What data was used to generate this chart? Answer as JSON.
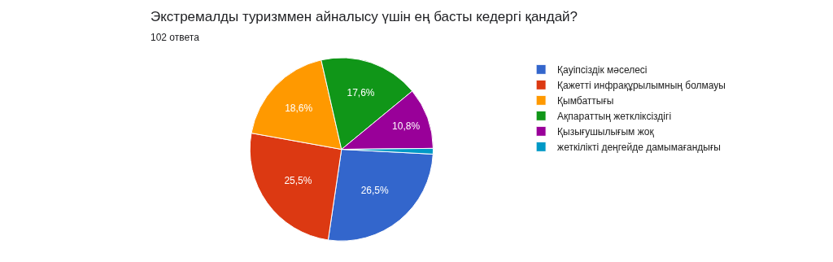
{
  "chart_data": {
    "type": "pie",
    "title": "Экстремалды туризммен айналысу үшін ең басты кедергі қандай?",
    "subtitle": "102 ответа",
    "categories": [
      "Қауіпсіздік мәселесі",
      "Қажетті инфрақұрылымның болмауы",
      "Қымбаттығы",
      "Ақпараттың жетклiксiздiгi",
      "Қызығушылығым жоқ",
      "жеткілікті деңгейде дамымағандығы"
    ],
    "values": [
      26.5,
      25.5,
      18.6,
      17.6,
      10.8,
      1.0
    ],
    "colors": [
      "#3366cc",
      "#dc3912",
      "#ff9900",
      "#109618",
      "#990099",
      "#0099c6"
    ],
    "value_labels": [
      "26,5%",
      "25,5%",
      "18,6%",
      "17,6%",
      "10,8%",
      null
    ],
    "legend": "right"
  }
}
